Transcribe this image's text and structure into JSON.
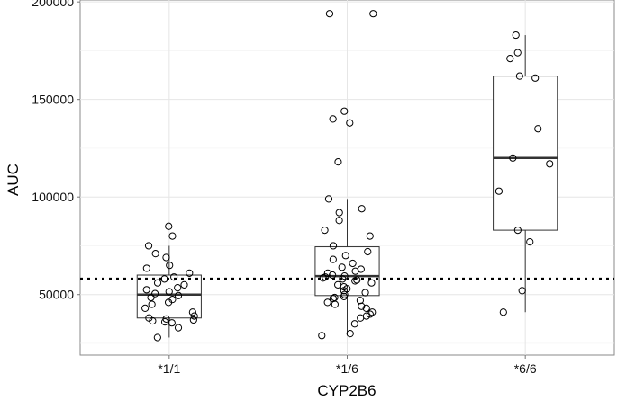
{
  "chart_data": {
    "type": "box",
    "xlabel": "CYP2B6",
    "ylabel": "AUC",
    "categories": [
      "*1/1",
      "*1/6",
      "*6/6"
    ],
    "ylim": [
      19000,
      201000
    ],
    "y_ticks": [
      50000,
      100000,
      150000,
      200000
    ],
    "y_tick_labels": [
      "50000",
      "100000",
      "150000",
      "200000"
    ],
    "grid": true,
    "reference_line": {
      "y": 58000,
      "style": "dotted"
    },
    "boxes": [
      {
        "category": "*1/1",
        "whisker_low": 28000,
        "q1": 38000,
        "median": 50000,
        "q3": 60000,
        "whisker_high": 75000
      },
      {
        "category": "*1/6",
        "whisker_low": 29000,
        "q1": 49500,
        "median": 59500,
        "q3": 74500,
        "whisker_high": 99000
      },
      {
        "category": "*6/6",
        "whisker_low": 41000,
        "q1": 83000,
        "median": 120000,
        "q3": 162000,
        "whisker_high": 183000
      }
    ],
    "points": [
      {
        "category": "*1/1",
        "values": [
          85000,
          80000,
          75000,
          71000,
          69000,
          65000,
          63500,
          61000,
          59000,
          58000,
          56000,
          55000,
          53500,
          52500,
          51500,
          50500,
          49500,
          48500,
          47500,
          46000,
          45000,
          43000,
          41000,
          39000,
          38000,
          37500,
          37000,
          36500,
          36000,
          35500,
          33000,
          28000
        ]
      },
      {
        "category": "*1/6",
        "values": [
          194000,
          194000,
          144000,
          140000,
          138000,
          118000,
          99000,
          94000,
          92000,
          88000,
          83000,
          80000,
          75000,
          72000,
          70000,
          68000,
          66000,
          64000,
          63000,
          62000,
          61000,
          60000,
          59500,
          59000,
          58500,
          58000,
          57500,
          57000,
          56000,
          55000,
          54000,
          53000,
          52000,
          51000,
          50000,
          49000,
          48500,
          48000,
          47000,
          46000,
          45000,
          44000,
          43000,
          41000,
          40000,
          39000,
          38000,
          35000,
          30000,
          29000
        ]
      },
      {
        "category": "*6/6",
        "values": [
          183000,
          174000,
          171000,
          162000,
          161000,
          135000,
          120000,
          117000,
          103000,
          83000,
          77000,
          52000,
          41000
        ]
      }
    ]
  }
}
